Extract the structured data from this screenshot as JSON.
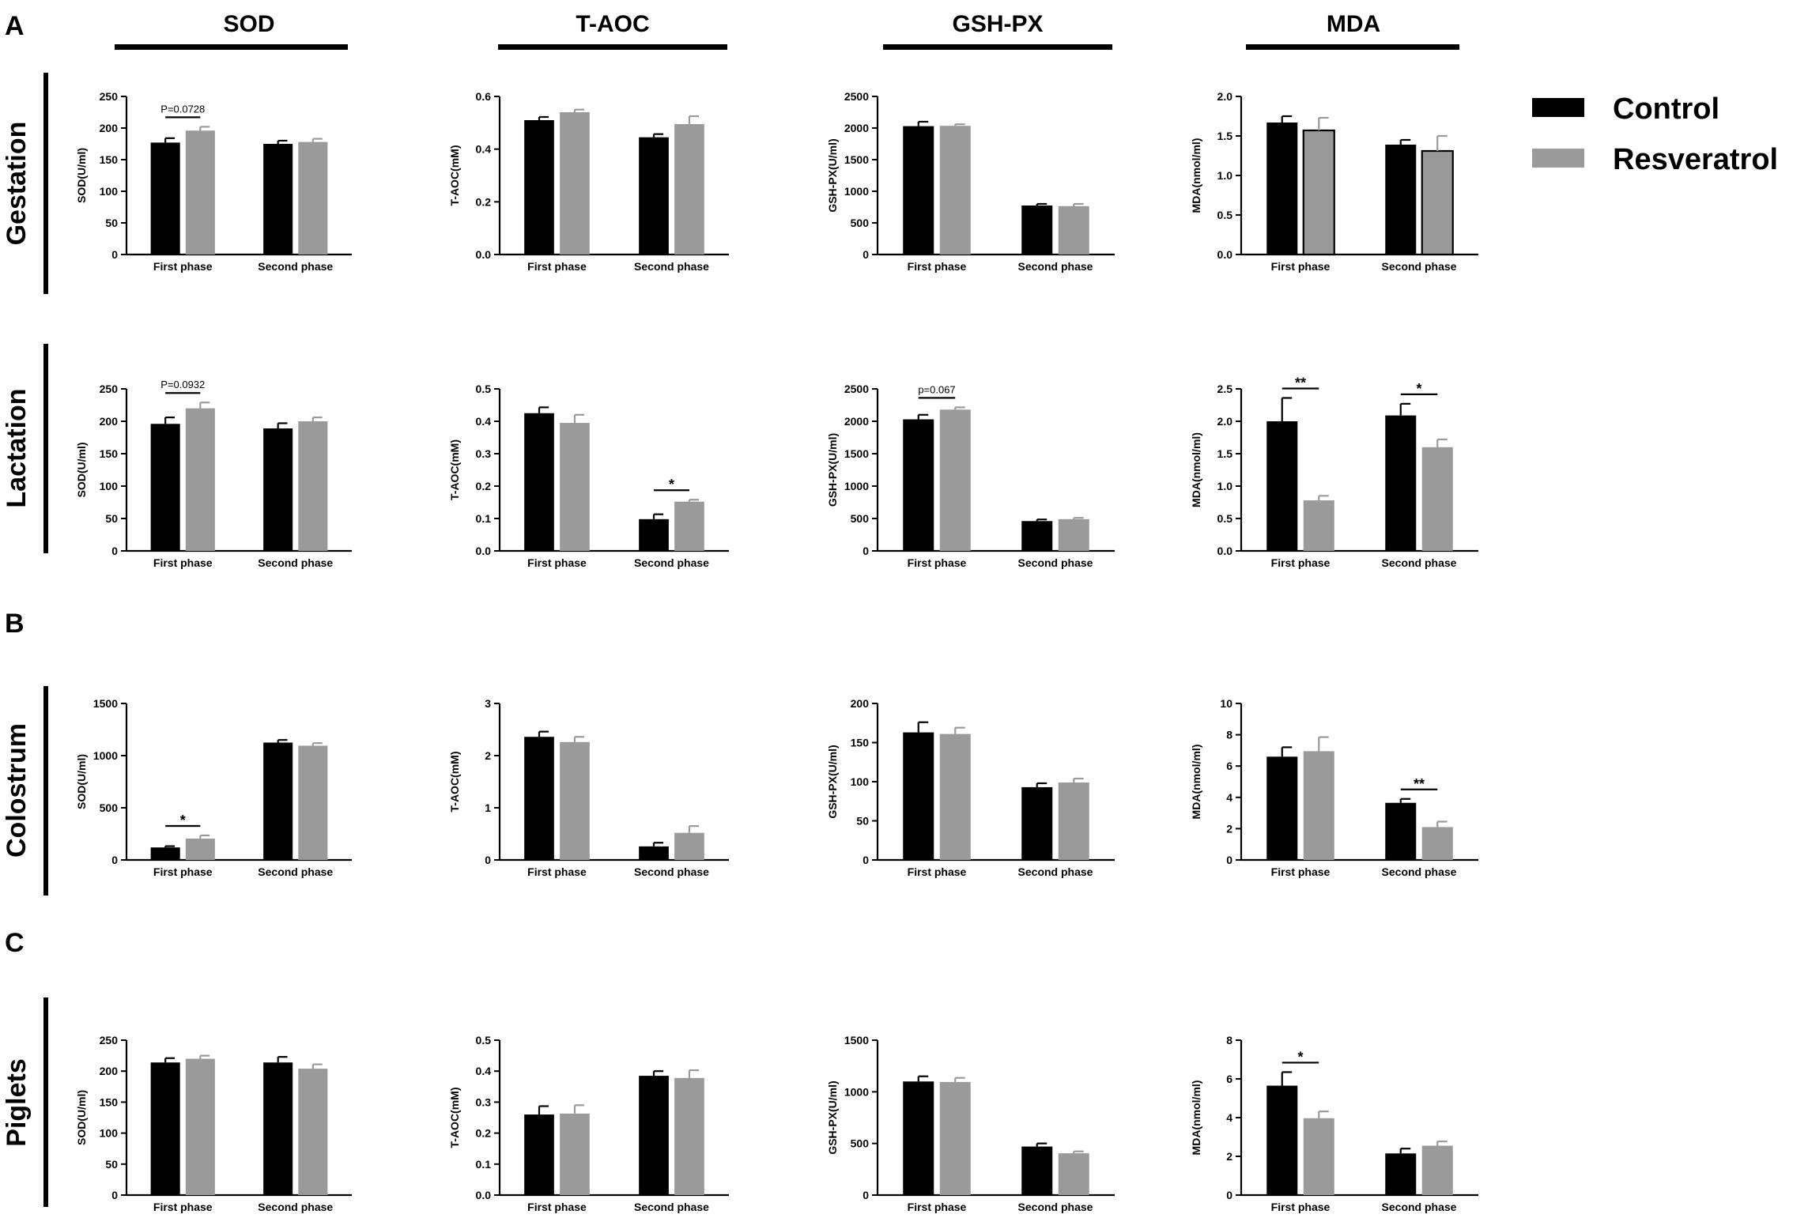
{
  "panels": {
    "A": "A",
    "B": "B",
    "C": "C"
  },
  "columns": [
    "SOD",
    "T-AOC",
    "GSH-PX",
    "MDA"
  ],
  "rows": [
    "Gestation",
    "Lactation",
    "Colostrum",
    "Piglets"
  ],
  "legend": {
    "items": [
      {
        "label": "Control",
        "color": "#000000"
      },
      {
        "label": "Resveratrol",
        "color": "#9a9a9a"
      }
    ]
  },
  "colors": {
    "control": "#000000",
    "resveratrol": "#9a9a9a"
  },
  "chart_data": [
    {
      "type": "bar",
      "row": "Gestation",
      "col": "SOD",
      "ylabel": "SOD(U/ml)",
      "ylim": [
        0,
        250
      ],
      "yticks": [
        "0",
        "50",
        "100",
        "150",
        "200",
        "250"
      ],
      "categories": [
        "First phase",
        "Second phase"
      ],
      "series": [
        {
          "name": "Control",
          "values": [
            177,
            175
          ],
          "err": [
            7,
            5
          ]
        },
        {
          "name": "Resveratrol",
          "values": [
            196,
            178
          ],
          "err": [
            6,
            5
          ]
        }
      ],
      "annotations": [
        {
          "group": 0,
          "text": "P=0.0728"
        }
      ]
    },
    {
      "type": "bar",
      "row": "Gestation",
      "col": "T-AOC",
      "ylabel": "T-AOC(mM)",
      "ylim": [
        0,
        0.6
      ],
      "yticks": [
        "0.0",
        "0.2",
        "0.4",
        "0.6"
      ],
      "categories": [
        "First phase",
        "Second phase"
      ],
      "series": [
        {
          "name": "Control",
          "values": [
            0.51,
            0.445
          ],
          "err": [
            0.012,
            0.012
          ]
        },
        {
          "name": "Resveratrol",
          "values": [
            0.54,
            0.495
          ],
          "err": [
            0.01,
            0.03
          ]
        }
      ],
      "annotations": []
    },
    {
      "type": "bar",
      "row": "Gestation",
      "col": "GSH-PX",
      "ylabel": "GSH-PX(U/ml)",
      "ylim": [
        0,
        2500
      ],
      "yticks": [
        "0",
        "500",
        "1000",
        "1500",
        "2000",
        "2500"
      ],
      "categories": [
        "First phase",
        "Second phase"
      ],
      "series": [
        {
          "name": "Control",
          "values": [
            2030,
            775
          ],
          "err": [
            70,
            25
          ]
        },
        {
          "name": "Resveratrol",
          "values": [
            2035,
            765
          ],
          "err": [
            25,
            35
          ]
        }
      ],
      "annotations": []
    },
    {
      "type": "bar",
      "row": "Gestation",
      "col": "MDA",
      "ylabel": "MDA(nmol/ml)",
      "ylim": [
        0,
        2.0
      ],
      "yticks": [
        "0.0",
        "0.5",
        "1.0",
        "1.5",
        "2.0"
      ],
      "categories": [
        "First phase",
        "Second phase"
      ],
      "series": [
        {
          "name": "Control",
          "values": [
            1.67,
            1.39
          ],
          "err": [
            0.08,
            0.06
          ]
        },
        {
          "name": "Resveratrol",
          "values": [
            1.57,
            1.31
          ],
          "err": [
            0.16,
            0.19
          ]
        }
      ],
      "annotations": []
    },
    {
      "type": "bar",
      "row": "Lactation",
      "col": "SOD",
      "ylabel": "SOD(U/ml)",
      "ylim": [
        0,
        250
      ],
      "yticks": [
        "0",
        "50",
        "100",
        "150",
        "200",
        "250"
      ],
      "categories": [
        "First phase",
        "Second phase"
      ],
      "series": [
        {
          "name": "Control",
          "values": [
            196,
            189
          ],
          "err": [
            10,
            8
          ]
        },
        {
          "name": "Resveratrol",
          "values": [
            220,
            200
          ],
          "err": [
            9,
            6
          ]
        }
      ],
      "annotations": [
        {
          "group": 0,
          "text": "P=0.0932"
        }
      ]
    },
    {
      "type": "bar",
      "row": "Lactation",
      "col": "T-AOC",
      "ylabel": "T-AOC(mM)",
      "ylim": [
        0,
        0.5
      ],
      "yticks": [
        "0.0",
        "0.1",
        "0.2",
        "0.3",
        "0.4",
        "0.5"
      ],
      "categories": [
        "First phase",
        "Second phase"
      ],
      "series": [
        {
          "name": "Control",
          "values": [
            0.425,
            0.098
          ],
          "err": [
            0.018,
            0.015
          ]
        },
        {
          "name": "Resveratrol",
          "values": [
            0.395,
            0.152
          ],
          "err": [
            0.025,
            0.006
          ]
        }
      ],
      "annotations": [
        {
          "group": 1,
          "text": "*"
        }
      ]
    },
    {
      "type": "bar",
      "row": "Lactation",
      "col": "GSH-PX",
      "ylabel": "GSH-PX(U/ml)",
      "ylim": [
        0,
        2500
      ],
      "yticks": [
        "0",
        "500",
        "1000",
        "1500",
        "2000",
        "2500"
      ],
      "categories": [
        "First phase",
        "Second phase"
      ],
      "series": [
        {
          "name": "Control",
          "values": [
            2030,
            460
          ],
          "err": [
            70,
            25
          ]
        },
        {
          "name": "Resveratrol",
          "values": [
            2180,
            490
          ],
          "err": [
            35,
            20
          ]
        }
      ],
      "annotations": [
        {
          "group": 0,
          "text": "p=0.067"
        }
      ]
    },
    {
      "type": "bar",
      "row": "Lactation",
      "col": "MDA",
      "ylabel": "MDA(nmol/ml)",
      "ylim": [
        0,
        2.5
      ],
      "yticks": [
        "0.0",
        "0.5",
        "1.0",
        "1.5",
        "2.0",
        "2.5"
      ],
      "categories": [
        "First phase",
        "Second phase"
      ],
      "series": [
        {
          "name": "Control",
          "values": [
            2.0,
            2.09
          ],
          "err": [
            0.36,
            0.18
          ]
        },
        {
          "name": "Resveratrol",
          "values": [
            0.78,
            1.6
          ],
          "err": [
            0.07,
            0.12
          ]
        }
      ],
      "annotations": [
        {
          "group": 0,
          "text": "**"
        },
        {
          "group": 1,
          "text": "*"
        }
      ]
    },
    {
      "type": "bar",
      "row": "Colostrum",
      "col": "SOD",
      "ylabel": "SOD(U/ml)",
      "ylim": [
        0,
        1500
      ],
      "yticks": [
        "0",
        "500",
        "1000",
        "1500"
      ],
      "categories": [
        "First phase",
        "Second phase"
      ],
      "series": [
        {
          "name": "Control",
          "values": [
            120,
            1125
          ],
          "err": [
            12,
            25
          ]
        },
        {
          "name": "Resveratrol",
          "values": [
            205,
            1095
          ],
          "err": [
            30,
            25
          ]
        }
      ],
      "annotations": [
        {
          "group": 0,
          "text": "*"
        }
      ]
    },
    {
      "type": "bar",
      "row": "Colostrum",
      "col": "T-AOC",
      "ylabel": "T-AOC(mM)",
      "ylim": [
        0,
        3
      ],
      "yticks": [
        "0",
        "1",
        "2",
        "3"
      ],
      "categories": [
        "First phase",
        "Second phase"
      ],
      "series": [
        {
          "name": "Control",
          "values": [
            2.36,
            0.26
          ],
          "err": [
            0.1,
            0.07
          ]
        },
        {
          "name": "Resveratrol",
          "values": [
            2.26,
            0.52
          ],
          "err": [
            0.1,
            0.13
          ]
        }
      ],
      "annotations": []
    },
    {
      "type": "bar",
      "row": "Colostrum",
      "col": "GSH-PX",
      "ylabel": "GSH-PX(U/ml)",
      "ylim": [
        0,
        200
      ],
      "yticks": [
        "0",
        "50",
        "100",
        "150",
        "200"
      ],
      "categories": [
        "First phase",
        "Second phase"
      ],
      "series": [
        {
          "name": "Control",
          "values": [
            163,
            93
          ],
          "err": [
            13,
            5
          ]
        },
        {
          "name": "Resveratrol",
          "values": [
            161,
            99
          ],
          "err": [
            8,
            5
          ]
        }
      ],
      "annotations": []
    },
    {
      "type": "bar",
      "row": "Colostrum",
      "col": "MDA",
      "ylabel": "MDA(nmol/ml)",
      "ylim": [
        0,
        10
      ],
      "yticks": [
        "0",
        "2",
        "4",
        "6",
        "8",
        "10"
      ],
      "categories": [
        "First phase",
        "Second phase"
      ],
      "series": [
        {
          "name": "Control",
          "values": [
            6.6,
            3.65
          ],
          "err": [
            0.6,
            0.25
          ]
        },
        {
          "name": "Resveratrol",
          "values": [
            6.95,
            2.1
          ],
          "err": [
            0.9,
            0.35
          ]
        }
      ],
      "annotations": [
        {
          "group": 1,
          "text": "**"
        }
      ]
    },
    {
      "type": "bar",
      "row": "Piglets",
      "col": "SOD",
      "ylabel": "SOD(U/ml)",
      "ylim": [
        0,
        250
      ],
      "yticks": [
        "0",
        "50",
        "100",
        "150",
        "200",
        "250"
      ],
      "categories": [
        "First phase",
        "Second phase"
      ],
      "series": [
        {
          "name": "Control",
          "values": [
            214,
            214
          ],
          "err": [
            7,
            9
          ]
        },
        {
          "name": "Resveratrol",
          "values": [
            220,
            204
          ],
          "err": [
            5,
            7
          ]
        }
      ],
      "annotations": []
    },
    {
      "type": "bar",
      "row": "Piglets",
      "col": "T-AOC",
      "ylabel": "T-AOC(mM)",
      "ylim": [
        0,
        0.5
      ],
      "yticks": [
        "0.0",
        "0.1",
        "0.2",
        "0.3",
        "0.4",
        "0.5"
      ],
      "categories": [
        "First phase",
        "Second phase"
      ],
      "series": [
        {
          "name": "Control",
          "values": [
            0.26,
            0.385
          ],
          "err": [
            0.027,
            0.015
          ]
        },
        {
          "name": "Resveratrol",
          "values": [
            0.263,
            0.378
          ],
          "err": [
            0.027,
            0.025
          ]
        }
      ],
      "annotations": []
    },
    {
      "type": "bar",
      "row": "Piglets",
      "col": "GSH-PX",
      "ylabel": "GSH-PX(U/ml)",
      "ylim": [
        0,
        1500
      ],
      "yticks": [
        "0",
        "500",
        "1000",
        "1500"
      ],
      "categories": [
        "First phase",
        "Second phase"
      ],
      "series": [
        {
          "name": "Control",
          "values": [
            1100,
            470
          ],
          "err": [
            50,
            30
          ]
        },
        {
          "name": "Resveratrol",
          "values": [
            1095,
            405
          ],
          "err": [
            40,
            18
          ]
        }
      ],
      "annotations": []
    },
    {
      "type": "bar",
      "row": "Piglets",
      "col": "MDA",
      "ylabel": "MDA(nmol/ml)",
      "ylim": [
        0,
        8
      ],
      "yticks": [
        "0",
        "2",
        "4",
        "6",
        "8"
      ],
      "categories": [
        "First phase",
        "Second phase"
      ],
      "series": [
        {
          "name": "Control",
          "values": [
            5.65,
            2.15
          ],
          "err": [
            0.7,
            0.25
          ]
        },
        {
          "name": "Resveratrol",
          "values": [
            3.97,
            2.55
          ],
          "err": [
            0.35,
            0.22
          ]
        }
      ],
      "annotations": [
        {
          "group": 0,
          "text": "*"
        }
      ]
    }
  ]
}
